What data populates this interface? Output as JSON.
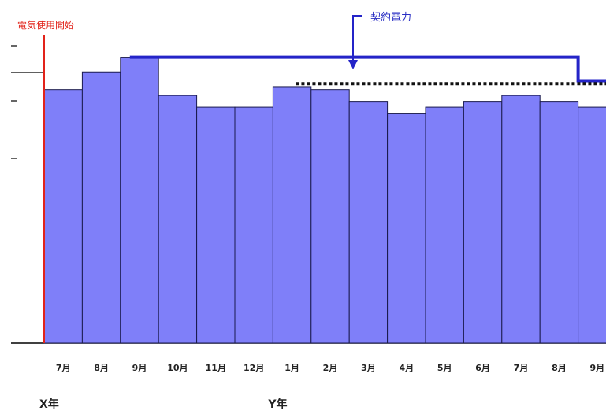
{
  "chart_data": {
    "type": "bar",
    "categories": [
      "7月",
      "8月",
      "9月",
      "10月",
      "11月",
      "12月",
      "1月",
      "2月",
      "3月",
      "4月",
      "5月",
      "6月",
      "7月",
      "8月",
      "9月"
    ],
    "values": [
      86,
      92,
      97,
      84,
      80,
      80,
      87,
      86,
      82,
      78,
      80,
      82,
      84,
      82,
      80
    ],
    "ylim": [
      0,
      110
    ],
    "year_labels": [
      {
        "text": "X年",
        "category_index": 0
      },
      {
        "text": "Y年",
        "category_index": 6
      }
    ],
    "annotations": {
      "start_label": "電気使用開始",
      "contract_label": "契約電力"
    },
    "contract_power": [
      {
        "from_index": 2,
        "to_index": 13,
        "value": 97
      },
      {
        "from_index": 14,
        "to_index": 14,
        "value": 89
      }
    ],
    "dotted_line": {
      "from_index": 6,
      "to_index": 14,
      "value": 88
    },
    "colors": {
      "bar_fill": "#7f7ff9",
      "bar_stroke": "#1a1a4d",
      "contract_line": "#2424c8",
      "start_line": "#e2231a",
      "dotted_line": "#111111",
      "axis": "#000000"
    }
  }
}
